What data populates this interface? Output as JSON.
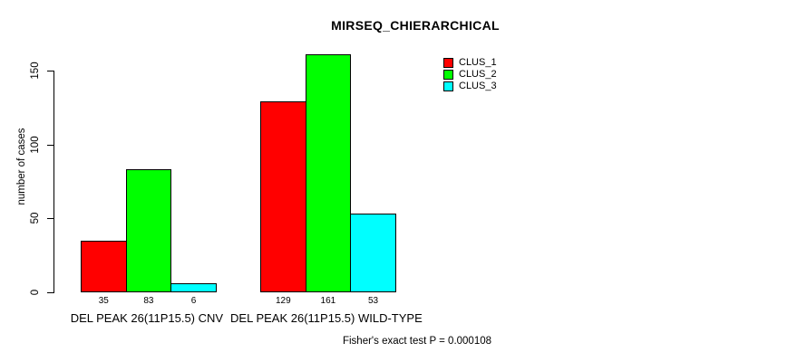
{
  "chart_data": {
    "type": "bar",
    "title": "MIRSEQ_CHIERARCHICAL",
    "ylabel": "number of cases",
    "xlabel": "",
    "categories": [
      "DEL PEAK 26(11P15.5) CNV",
      "DEL PEAK 26(11P15.5) WILD-TYPE"
    ],
    "series": [
      {
        "name": "CLUS_1",
        "color": "#ff0000",
        "values": [
          35,
          129
        ]
      },
      {
        "name": "CLUS_2",
        "color": "#00ff00",
        "values": [
          83,
          161
        ]
      },
      {
        "name": "CLUS_3",
        "color": "#00ffff",
        "values": [
          6,
          53
        ]
      }
    ],
    "value_labels": [
      [
        "35",
        "83",
        "6"
      ],
      [
        "129",
        "161",
        "53"
      ]
    ],
    "yticks": [
      0,
      50,
      100,
      150
    ],
    "ylim": [
      0,
      150
    ],
    "grid": false,
    "legend_position": "top-right",
    "bar_border_color": "#000000",
    "background_color": "#ffffff",
    "annotation": "Fisher's exact test P = 0.000108"
  }
}
